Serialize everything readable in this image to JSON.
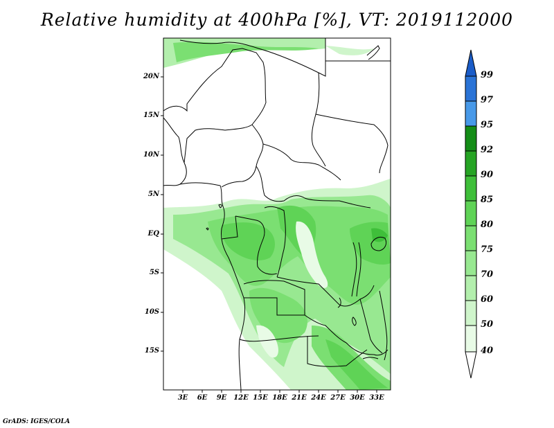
{
  "title": "Relative humidity at 400hPa [%], VT: 2019112000",
  "map": {
    "lat_ticks": [
      {
        "label": "20N",
        "value": 20
      },
      {
        "label": "15N",
        "value": 15
      },
      {
        "label": "10N",
        "value": 10
      },
      {
        "label": "5N",
        "value": 5
      },
      {
        "label": "EQ",
        "value": 0
      },
      {
        "label": "5S",
        "value": -5
      },
      {
        "label": "10S",
        "value": -10
      },
      {
        "label": "15S",
        "value": -15
      }
    ],
    "lon_ticks": [
      {
        "label": "3E",
        "value": 3
      },
      {
        "label": "6E",
        "value": 6
      },
      {
        "label": "9E",
        "value": 9
      },
      {
        "label": "12E",
        "value": 12
      },
      {
        "label": "15E",
        "value": 15
      },
      {
        "label": "18E",
        "value": 18
      },
      {
        "label": "21E",
        "value": 21
      },
      {
        "label": "24E",
        "value": 24
      },
      {
        "label": "27E",
        "value": 27
      },
      {
        "label": "30E",
        "value": 30
      },
      {
        "label": "33E",
        "value": 33
      }
    ]
  },
  "colorbar": {
    "levels": [
      {
        "label": "40",
        "color": "#ffffff"
      },
      {
        "label": "50",
        "color": "#e8fbe6"
      },
      {
        "label": "60",
        "color": "#cff5cb"
      },
      {
        "label": "70",
        "color": "#b3efad"
      },
      {
        "label": "75",
        "color": "#98e891"
      },
      {
        "label": "80",
        "color": "#7bdf72"
      },
      {
        "label": "85",
        "color": "#5fd356"
      },
      {
        "label": "90",
        "color": "#3fbf3a"
      },
      {
        "label": "92",
        "color": "#26a424"
      },
      {
        "label": "95",
        "color": "#148d17"
      },
      {
        "label": "97",
        "color": "#4899e8"
      },
      {
        "label": "99",
        "color": "#2a73d6"
      }
    ],
    "top_color": "#1a5cc8"
  },
  "footer": "GrADS: IGES/COLA"
}
